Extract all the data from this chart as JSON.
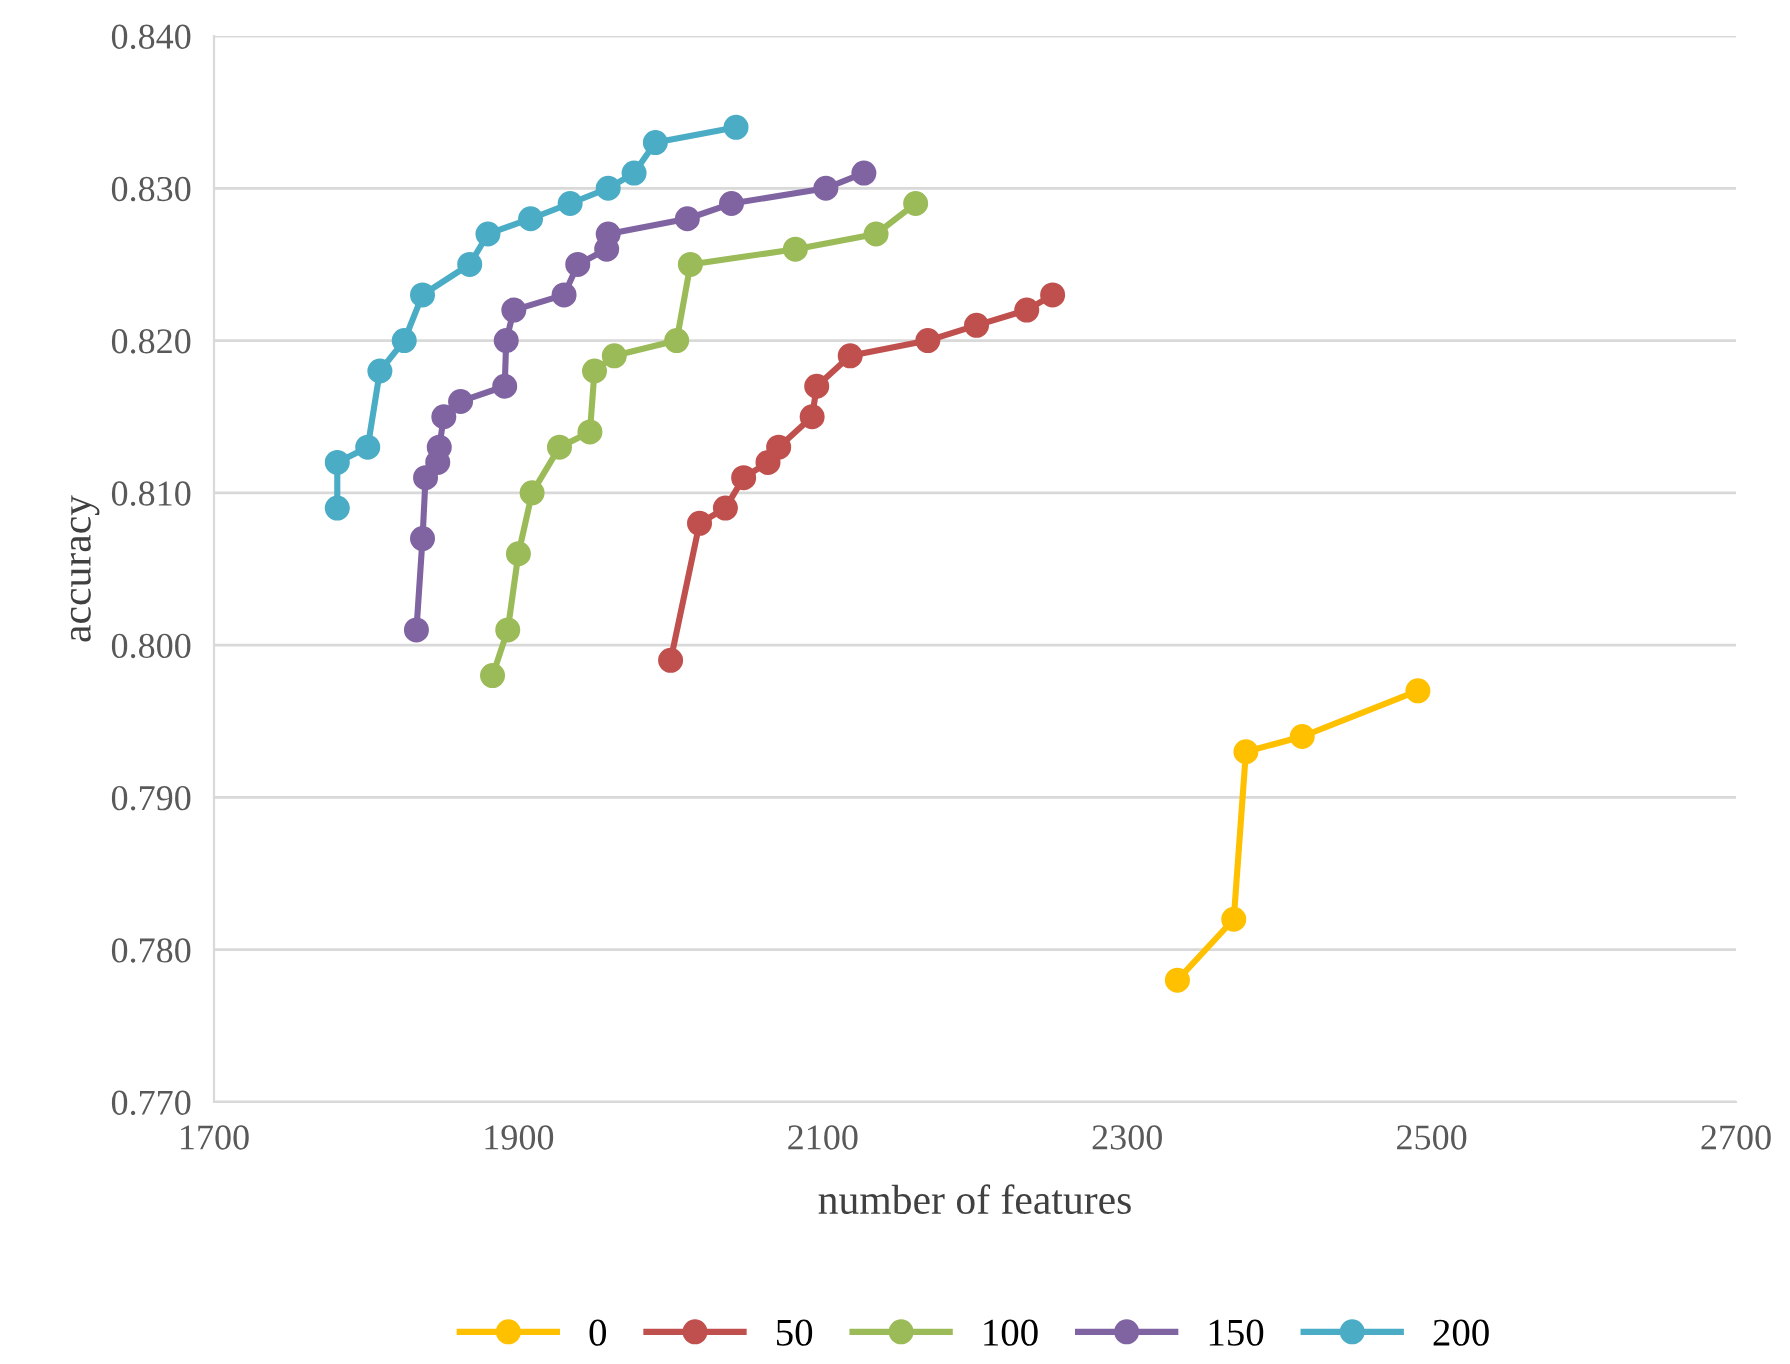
{
  "chart_data": {
    "type": "line",
    "xlabel": "number of features",
    "ylabel": "accuracy",
    "xlim": [
      1700,
      2700
    ],
    "xticks": [
      1700,
      1900,
      2100,
      2300,
      2500,
      2700
    ],
    "ylim": [
      0.77,
      0.84
    ],
    "yticks": [
      {
        "value": 0.77,
        "label": "0.770"
      },
      {
        "value": 0.78,
        "label": "0.780"
      },
      {
        "value": 0.79,
        "label": "0.790"
      },
      {
        "value": 0.8,
        "label": "0.800"
      },
      {
        "value": 0.81,
        "label": "0.810"
      },
      {
        "value": 0.82,
        "label": "0.820"
      },
      {
        "value": 0.83,
        "label": "0.830"
      },
      {
        "value": 0.84,
        "label": "0.840"
      }
    ],
    "grid": "y",
    "legend": "bottom",
    "marker": "circle",
    "line_style": "solid",
    "series": [
      {
        "name": "0",
        "color": "#ffc000",
        "x": [
          2333,
          2370,
          2378,
          2415,
          2491
        ],
        "values": [
          0.778,
          0.782,
          0.793,
          0.794,
          0.797
        ]
      },
      {
        "name": "50",
        "color": "#c0504d",
        "x": [
          2000,
          2019,
          2036,
          2048,
          2064,
          2071,
          2093,
          2096,
          2118,
          2169,
          2201,
          2234,
          2251
        ],
        "values": [
          0.799,
          0.808,
          0.809,
          0.811,
          0.812,
          0.813,
          0.815,
          0.817,
          0.819,
          0.82,
          0.821,
          0.822,
          0.823
        ]
      },
      {
        "name": "100",
        "color": "#9bbb59",
        "x": [
          1883,
          1893,
          1900,
          1909,
          1927,
          1947,
          1950,
          1963,
          2004,
          2013,
          2082,
          2135,
          2161
        ],
        "values": [
          0.798,
          0.801,
          0.806,
          0.81,
          0.813,
          0.814,
          0.818,
          0.819,
          0.82,
          0.825,
          0.826,
          0.827,
          0.829
        ]
      },
      {
        "name": "150",
        "color": "#8064a2",
        "x": [
          1833,
          1837,
          1839,
          1847,
          1848,
          1851,
          1862,
          1891,
          1892,
          1897,
          1930,
          1939,
          1958,
          1959,
          2011,
          2040,
          2102,
          2127
        ],
        "values": [
          0.801,
          0.807,
          0.811,
          0.812,
          0.813,
          0.815,
          0.816,
          0.817,
          0.82,
          0.822,
          0.823,
          0.825,
          0.826,
          0.827,
          0.828,
          0.829,
          0.83,
          0.831
        ]
      },
      {
        "name": "200",
        "color": "#4bacc6",
        "x": [
          1781,
          1781,
          1801,
          1809,
          1825,
          1837,
          1868,
          1880,
          1908,
          1934,
          1959,
          1976,
          1990,
          2043
        ],
        "values": [
          0.809,
          0.812,
          0.813,
          0.818,
          0.82,
          0.823,
          0.825,
          0.827,
          0.828,
          0.829,
          0.83,
          0.831,
          0.833,
          0.834
        ]
      }
    ]
  }
}
